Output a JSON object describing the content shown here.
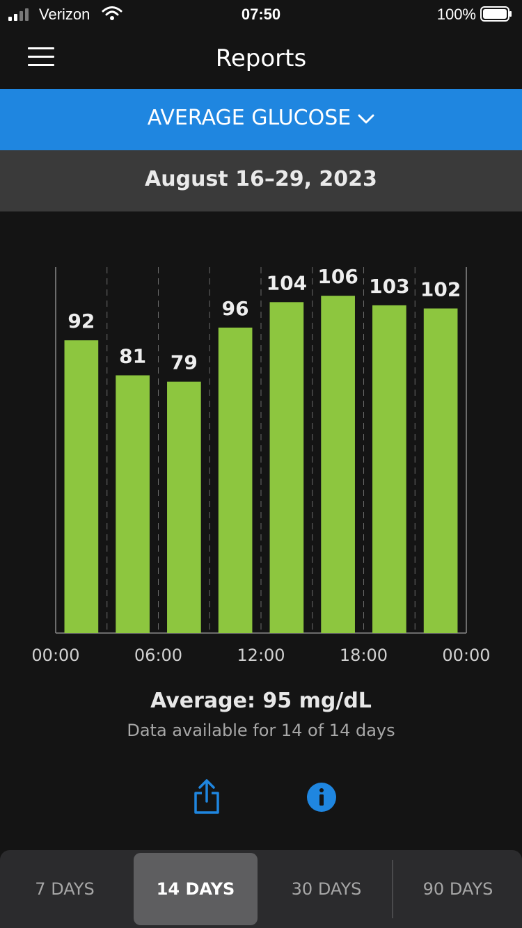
{
  "status_bar": {
    "carrier": "Verizon",
    "time": "07:50",
    "battery": "100%"
  },
  "nav": {
    "title": "Reports"
  },
  "metric_selector": {
    "label": "AVERAGE GLUCOSE"
  },
  "date_range": "August 16–29, 2023",
  "chart_data": {
    "type": "bar",
    "categories": [
      "00:00–03:00",
      "03:00–06:00",
      "06:00–09:00",
      "09:00–12:00",
      "12:00–15:00",
      "15:00–18:00",
      "18:00–21:00",
      "21:00–24:00"
    ],
    "values": [
      92,
      81,
      79,
      96,
      104,
      106,
      103,
      102
    ],
    "x_tick_labels": [
      "00:00",
      "06:00",
      "12:00",
      "18:00",
      "00:00"
    ],
    "ylim": [
      0,
      115
    ],
    "grid": "vertical dashed",
    "bar_color": "#8dc63f"
  },
  "summary": {
    "average": "Average: 95 mg/dL",
    "availability": "Data available for 14 of 14 days"
  },
  "actions": {
    "share_icon": "share-icon",
    "info_icon": "info-icon"
  },
  "colors": {
    "accent": "#1f86e0",
    "bar": "#8dc63f",
    "background": "#141414"
  },
  "period_tabs": [
    {
      "label": "7 DAYS",
      "selected": false
    },
    {
      "label": "14 DAYS",
      "selected": true
    },
    {
      "label": "30 DAYS",
      "selected": false
    },
    {
      "label": "90 DAYS",
      "selected": false
    }
  ]
}
